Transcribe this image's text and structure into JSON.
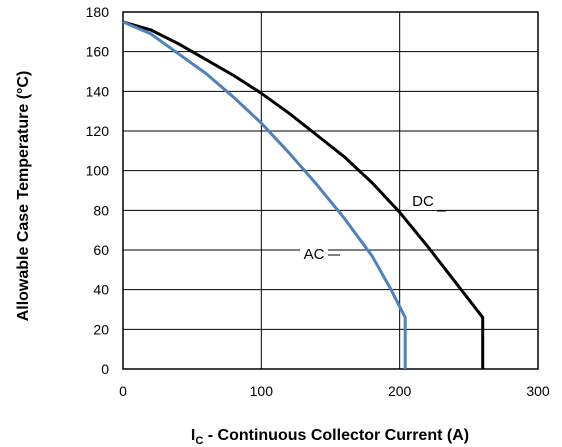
{
  "chart_data": {
    "type": "line",
    "title": "",
    "xlabel_main": "I",
    "xlabel_sub": "C",
    "xlabel_rest": " - Continuous Collector Current (A)",
    "ylabel": "Allowable Case Temperature (°C)",
    "xlim": [
      0,
      300
    ],
    "ylim": [
      0,
      180
    ],
    "x_ticks": [
      0,
      100,
      200,
      300
    ],
    "y_ticks": [
      0,
      20,
      40,
      60,
      80,
      100,
      120,
      140,
      160,
      180
    ],
    "grid": true,
    "series": [
      {
        "name": "DC",
        "color": "#000000",
        "points": [
          [
            0,
            175
          ],
          [
            20,
            171
          ],
          [
            40,
            164
          ],
          [
            60,
            156
          ],
          [
            80,
            148
          ],
          [
            100,
            139
          ],
          [
            120,
            129
          ],
          [
            140,
            118
          ],
          [
            160,
            107
          ],
          [
            180,
            94
          ],
          [
            200,
            79
          ],
          [
            220,
            62
          ],
          [
            240,
            44
          ],
          [
            260,
            26
          ],
          [
            260,
            0
          ]
        ]
      },
      {
        "name": "AC",
        "color": "#4f81bd",
        "points": [
          [
            0,
            175
          ],
          [
            20,
            169
          ],
          [
            40,
            159
          ],
          [
            60,
            149
          ],
          [
            80,
            137
          ],
          [
            100,
            124
          ],
          [
            120,
            109
          ],
          [
            140,
            93
          ],
          [
            160,
            76
          ],
          [
            180,
            57
          ],
          [
            193,
            41
          ],
          [
            204,
            26
          ],
          [
            204,
            0
          ]
        ]
      }
    ]
  }
}
